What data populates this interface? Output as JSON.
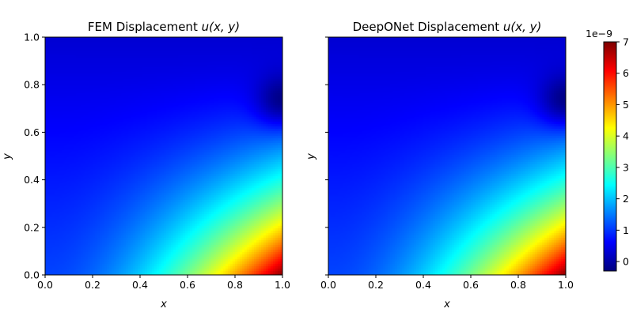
{
  "chart_data": [
    {
      "type": "heatmap",
      "title": "FEM Displacement u(x, y)",
      "xlabel": "x",
      "ylabel": "y",
      "xlim": [
        0.0,
        1.0
      ],
      "ylim": [
        0.0,
        1.0
      ],
      "xticks": [
        "0.0",
        "0.2",
        "0.4",
        "0.6",
        "0.8",
        "1.0"
      ],
      "yticks": [
        "0.0",
        "0.2",
        "0.4",
        "0.6",
        "0.8",
        "1.0"
      ],
      "colormap": "jet",
      "grid_resolution": [
        100,
        100
      ],
      "value_range": [
        -3e-10,
        7e-09
      ],
      "min_location": [
        1.0,
        0.73
      ],
      "max_location": [
        1.0,
        0.0
      ],
      "samples": [
        {
          "x": 0.0,
          "y": 1.0,
          "u": 3e-10
        },
        {
          "x": 0.0,
          "y": 0.0,
          "u": 9e-10
        },
        {
          "x": 0.5,
          "y": 0.5,
          "u": 1.2e-09
        },
        {
          "x": 1.0,
          "y": 0.73,
          "u": -3e-10
        },
        {
          "x": 1.0,
          "y": 0.4,
          "u": 3e-09
        },
        {
          "x": 0.5,
          "y": 0.0,
          "u": 3.2e-09
        },
        {
          "x": 1.0,
          "y": 0.2,
          "u": 4.8e-09
        },
        {
          "x": 0.85,
          "y": 0.0,
          "u": 5.2e-09
        },
        {
          "x": 1.0,
          "y": 0.0,
          "u": 7e-09
        }
      ]
    },
    {
      "type": "heatmap",
      "title": "DeepONet Displacement u(x, y)",
      "xlabel": "x",
      "ylabel": "y",
      "xlim": [
        0.0,
        1.0
      ],
      "ylim": [
        0.0,
        1.0
      ],
      "xticks": [
        "0.0",
        "0.2",
        "0.4",
        "0.6",
        "0.8",
        "1.0"
      ],
      "yticks_shown": false,
      "colormap": "jet",
      "grid_resolution": [
        100,
        100
      ],
      "value_range": [
        -3e-10,
        7e-09
      ],
      "min_location": [
        1.0,
        0.73
      ],
      "max_location": [
        1.0,
        0.0
      ],
      "samples": [
        {
          "x": 0.0,
          "y": 1.0,
          "u": 3e-10
        },
        {
          "x": 0.0,
          "y": 0.0,
          "u": 9e-10
        },
        {
          "x": 0.5,
          "y": 0.5,
          "u": 1.2e-09
        },
        {
          "x": 1.0,
          "y": 0.73,
          "u": -3e-10
        },
        {
          "x": 1.0,
          "y": 0.4,
          "u": 3e-09
        },
        {
          "x": 0.5,
          "y": 0.0,
          "u": 3.2e-09
        },
        {
          "x": 1.0,
          "y": 0.2,
          "u": 4.8e-09
        },
        {
          "x": 0.85,
          "y": 0.0,
          "u": 5.2e-09
        },
        {
          "x": 1.0,
          "y": 0.0,
          "u": 7e-09
        }
      ]
    }
  ],
  "colorbar": {
    "multiplier": "1e−9",
    "ticks": [
      "0",
      "1",
      "2",
      "3",
      "4",
      "5",
      "6",
      "7"
    ],
    "range": [
      -0.3,
      7.0
    ],
    "colormap": "jet"
  }
}
